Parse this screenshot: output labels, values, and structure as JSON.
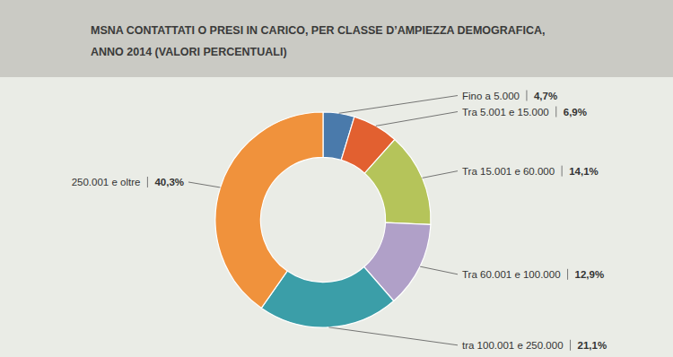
{
  "chart_data": {
    "type": "donut",
    "title": "MSNA CONTATTATI O PRESI IN CARICO, PER CLASSE D’AMPIEZZA DEMOGRAFICA,",
    "subtitle": "ANNO 2014 (VALORI PERCENTUALI)",
    "categories": [
      "Fino a 5.000",
      "Tra 5.001 e 15.000",
      "Tra 15.001 e 60.000",
      "Tra 60.001 e 100.000",
      "tra 100.001 e 250.000",
      "250.001 e oltre"
    ],
    "values": [
      4.7,
      6.9,
      14.1,
      12.9,
      21.1,
      40.3
    ],
    "value_labels": [
      "4,7%",
      "6,9%",
      "14,1%",
      "12,9%",
      "21,1%",
      "40,3%"
    ],
    "colors": [
      "#4a7aab",
      "#e26030",
      "#b5c45a",
      "#b0a0c8",
      "#3b9ea8",
      "#f0923c"
    ]
  }
}
